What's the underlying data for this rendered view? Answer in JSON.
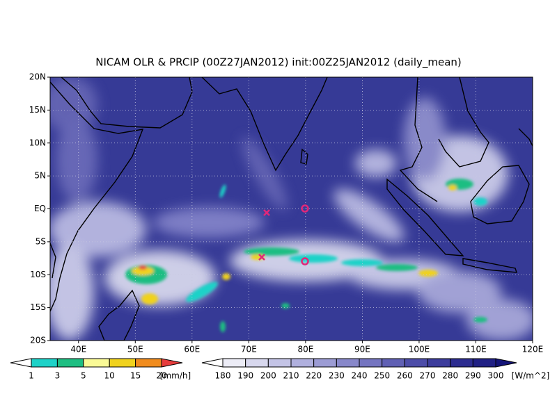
{
  "title": "NICAM OLR & PRCIP (00Z27JAN2012) init:00Z25JAN2012 (daily_mean)",
  "lat_labels": [
    "20N",
    "15N",
    "10N",
    "5N",
    "EQ",
    "5S",
    "10S",
    "15S",
    "20S"
  ],
  "lon_labels": [
    "40E",
    "50E",
    "60E",
    "70E",
    "80E",
    "90E",
    "100E",
    "110E",
    "120E"
  ],
  "precip_legend": {
    "labels": [
      1,
      3,
      5,
      10,
      15,
      20
    ],
    "unit": "[mm/h]",
    "colors": [
      "#ffffff",
      "#1ed2c8",
      "#1ebe82",
      "#fafa96",
      "#f0d21e",
      "#f08c1e",
      "#e63c3c"
    ]
  },
  "olr_legend": {
    "labels": [
      180,
      190,
      200,
      210,
      220,
      230,
      240,
      250,
      260,
      270,
      280,
      290,
      300
    ],
    "unit": "[W/m^2]",
    "colors": [
      "#ffffff",
      "#ececf6",
      "#d8d8ee",
      "#c4c4e6",
      "#b0b0de",
      "#9c9cd4",
      "#8888ca",
      "#7474c0",
      "#6060b4",
      "#4c4ca8",
      "#3c3c9c",
      "#2c2c90",
      "#202084",
      "#141478"
    ]
  }
}
